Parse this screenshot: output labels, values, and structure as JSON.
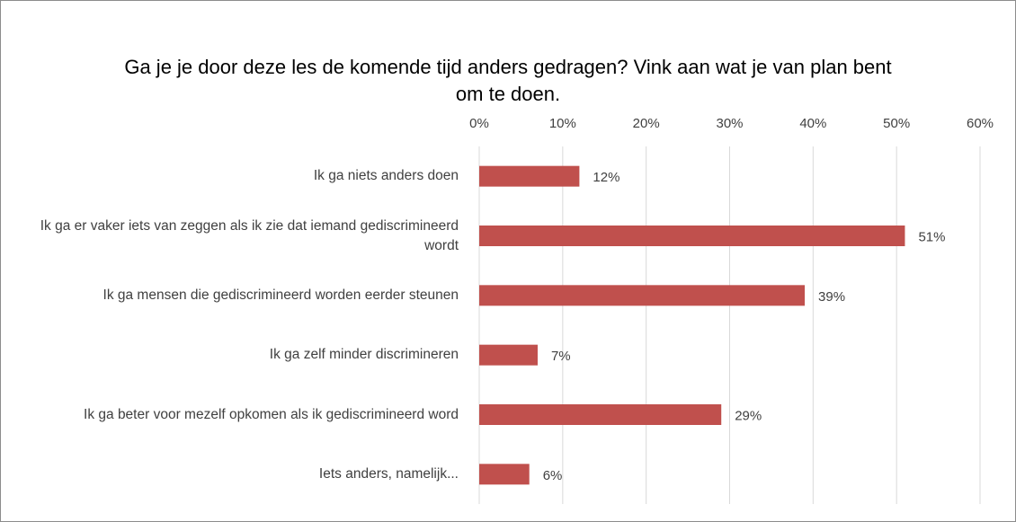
{
  "chart_data": {
    "type": "bar",
    "orientation": "horizontal",
    "title": "Ga je je door deze les de komende tijd anders gedragen? Vink aan wat je van plan bent om te doen.",
    "categories": [
      "Ik ga niets anders doen",
      "Ik ga er vaker iets van zeggen als ik zie dat iemand gediscrimineerd wordt",
      "Ik ga mensen die gediscrimineerd worden eerder steunen",
      "Ik ga zelf minder discrimineren",
      "Ik ga beter voor mezelf opkomen als ik gediscrimineerd word",
      "Iets anders, namelijk..."
    ],
    "values": [
      12,
      51,
      39,
      7,
      29,
      6
    ],
    "value_labels": [
      "12%",
      "51%",
      "39%",
      "7%",
      "29%",
      "6%"
    ],
    "color": "#c0504d",
    "xlim": [
      0,
      60
    ],
    "xticks": [
      {
        "value": 0,
        "label": "0%"
      },
      {
        "value": 10,
        "label": "10%"
      },
      {
        "value": 20,
        "label": "20%"
      },
      {
        "value": 30,
        "label": "30%"
      },
      {
        "value": 40,
        "label": "40%"
      },
      {
        "value": 50,
        "label": "50%"
      },
      {
        "value": 60,
        "label": "60%"
      }
    ],
    "grid": true
  }
}
